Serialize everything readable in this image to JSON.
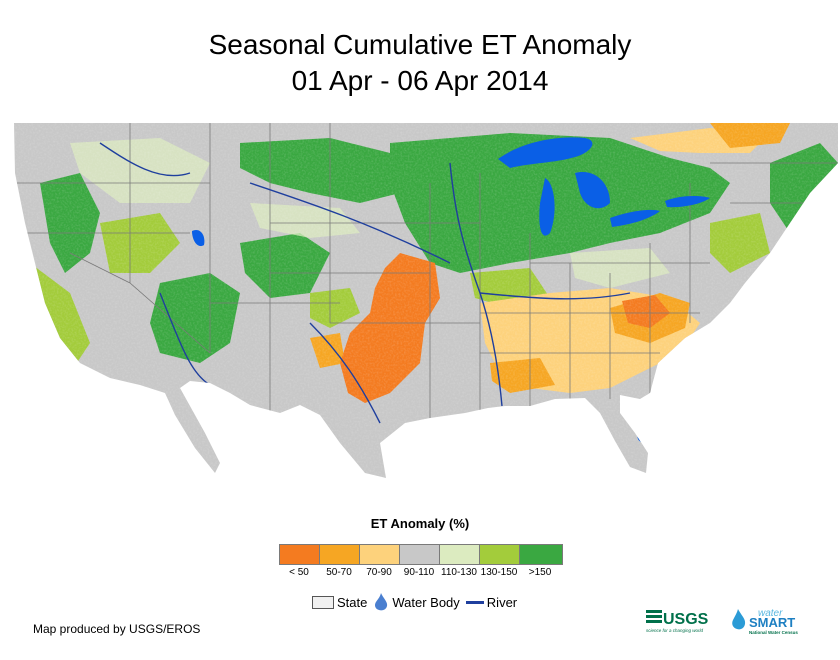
{
  "title": {
    "line1": "Seasonal Cumulative ET Anomaly",
    "line2": "01 Apr - 06 Apr 2014"
  },
  "legend": {
    "title": "ET Anomaly (%)",
    "classes": [
      {
        "label": "< 50",
        "color": "#f47b20"
      },
      {
        "label": "50-70",
        "color": "#f6a623"
      },
      {
        "label": "70-90",
        "color": "#fdd27c"
      },
      {
        "label": "90-110",
        "color": "#c8c8c8"
      },
      {
        "label": "110-130",
        "color": "#dcebc0"
      },
      {
        "label": "130-150",
        "color": "#a3cc3b"
      },
      {
        "label": ">150",
        "color": "#3aa841"
      }
    ]
  },
  "reference_legend": {
    "state": "State",
    "water_body": "Water Body",
    "river": "River"
  },
  "colors": {
    "water": "#0a5fe6",
    "river": "#1f3f9e",
    "state_line": "#7a7a7a"
  },
  "credit": "Map produced by USGS/EROS",
  "logos": {
    "usgs": "USGS",
    "usgs_tagline": "science for a changing world",
    "water": "water",
    "smart": "SMART",
    "watersmart_tagline": "National Water Census"
  }
}
